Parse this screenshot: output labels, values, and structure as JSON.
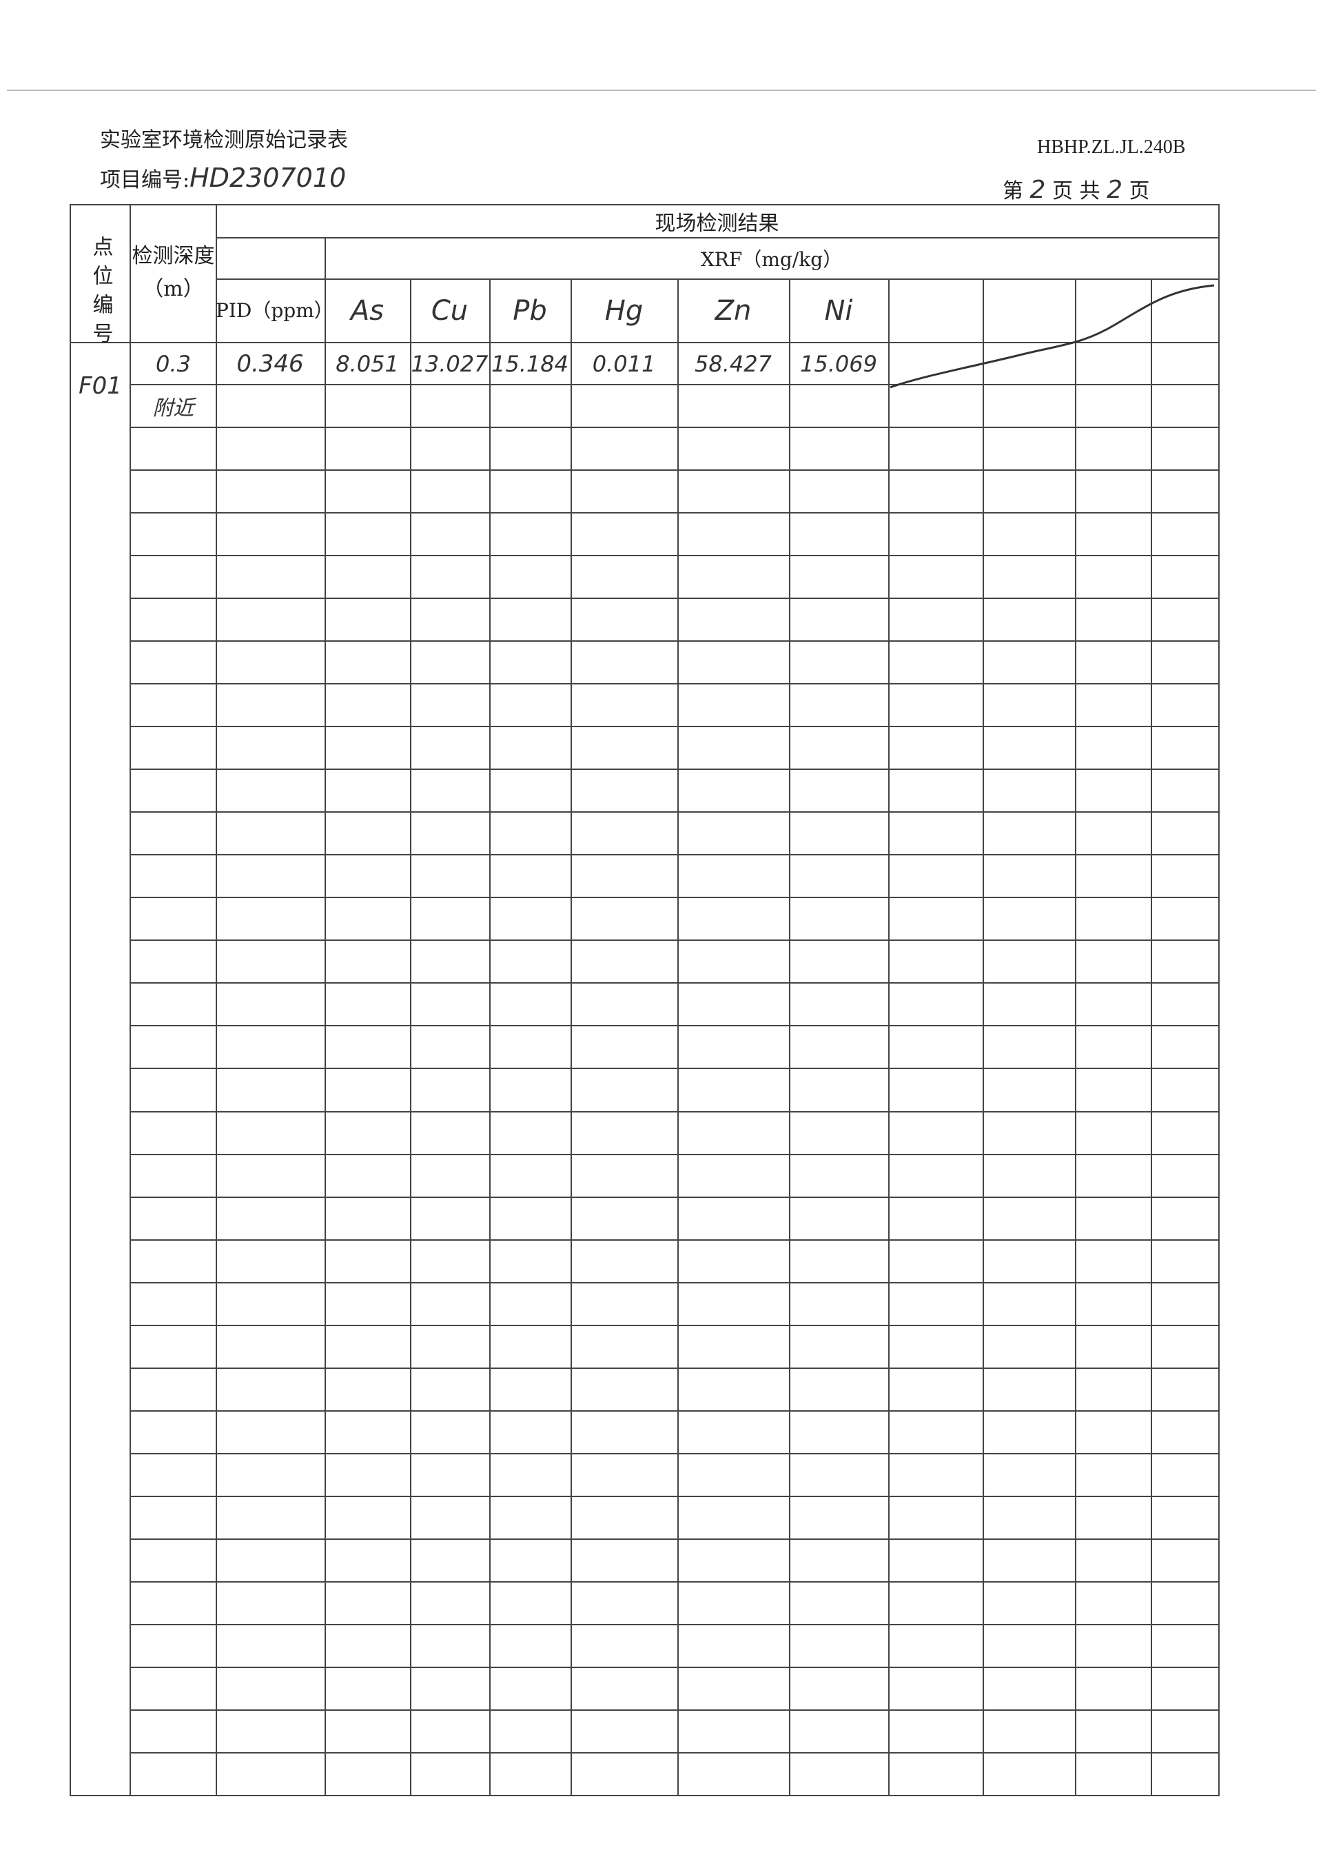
{
  "header": {
    "title": "实验室环境检测原始记录表",
    "form_code": "HBHP.ZL.JL.240B",
    "project_label": "项目编号:",
    "project_no": "HD2307010",
    "page_prefix": "第",
    "page_current": "2",
    "page_mid": "页 共",
    "page_total": "2",
    "page_suffix": "页"
  },
  "table": {
    "col_point": "点位编号",
    "col_depth": "检测深度（m）",
    "group_title": "现场检测结果",
    "xrf_title": "XRF（mg/kg）",
    "col_pid": "PID（ppm）",
    "elements": [
      "As",
      "Cu",
      "Pb",
      "Hg",
      "Zn",
      "Ni"
    ],
    "rows": [
      {
        "point": "F01",
        "depth": "0.3",
        "depth_note": "附近",
        "pid": "0.346",
        "values": [
          "8.051",
          "13.027",
          "15.184",
          "0.011",
          "58.427",
          "15.069"
        ]
      }
    ]
  }
}
